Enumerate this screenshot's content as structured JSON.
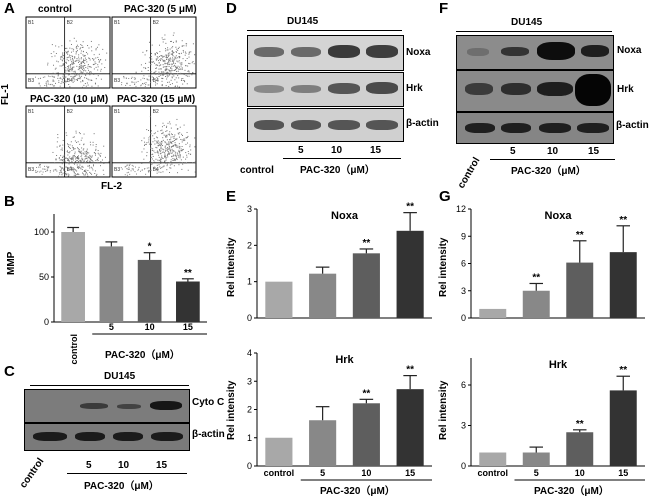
{
  "panels": {
    "A": {
      "letter": "A",
      "plots": [
        {
          "title": "control"
        },
        {
          "title": "PAC-320  (5 μM)"
        },
        {
          "title": "PAC-320  (10 μM)"
        },
        {
          "title": "PAC-320  (15 μM)"
        }
      ],
      "quadrants": [
        "B1",
        "B2",
        "B3",
        "B4"
      ],
      "ylabel": "FL-1",
      "xlabel": "FL-2"
    },
    "B": {
      "letter": "B",
      "ylabel": "MMP",
      "xtitle": "PAC-320（μM）"
    },
    "C": {
      "letter": "C",
      "cell": "DU145",
      "rows": [
        "Cyto C",
        "β-actin"
      ],
      "lanes": [
        "control",
        "5",
        "10",
        "15"
      ],
      "xtitle": "PAC-320（μM）"
    },
    "D": {
      "letter": "D",
      "cell": "DU145",
      "rows": [
        "Noxa",
        "Hrk",
        "β-actin"
      ],
      "lanes": [
        "control",
        "5",
        "10",
        "15"
      ],
      "xtitle": "PAC-320（μM）"
    },
    "E": {
      "letter": "E",
      "ylabel": "Rel intensity",
      "xtitle": "PAC-320（μM）"
    },
    "F": {
      "letter": "F",
      "cell": "DU145",
      "rows": [
        "Noxa",
        "Hrk",
        "β-actin"
      ],
      "lanes": [
        "control",
        "5",
        "10",
        "15"
      ],
      "xtitle": "PAC-320（μM）"
    },
    "G": {
      "letter": "G",
      "ylabel": "Rel intensity",
      "xtitle": "PAC-320（μM）"
    }
  },
  "colors": {
    "bars": [
      "#a8a8a8",
      "#888888",
      "#5e5e5e",
      "#333333"
    ]
  },
  "chart_data": [
    {
      "id": "B",
      "type": "bar",
      "title": "",
      "ylabel": "MMP",
      "categories": [
        "control",
        "5",
        "10",
        "15"
      ],
      "values": [
        100,
        84,
        69,
        45
      ],
      "errors": [
        5,
        5,
        8,
        3
      ],
      "sig": [
        "",
        "",
        "*",
        "**"
      ],
      "ylim": [
        0,
        120
      ],
      "yticks": [
        0,
        50,
        100
      ]
    },
    {
      "id": "E1",
      "type": "bar",
      "title": "Noxa",
      "ylabel": "Rel intensity",
      "categories": [
        "control",
        "5",
        "10",
        "15"
      ],
      "values": [
        1.0,
        1.22,
        1.78,
        2.4
      ],
      "errors": [
        0,
        0.18,
        0.12,
        0.5
      ],
      "sig": [
        "",
        "",
        "**",
        "**"
      ],
      "ylim": [
        0,
        3
      ],
      "yticks": [
        0,
        1,
        2,
        3
      ]
    },
    {
      "id": "E2",
      "type": "bar",
      "title": "Hrk",
      "ylabel": "Rel intensity",
      "categories": [
        "control",
        "5",
        "10",
        "15"
      ],
      "values": [
        1.0,
        1.62,
        2.22,
        2.72
      ],
      "errors": [
        0,
        0.48,
        0.14,
        0.48
      ],
      "sig": [
        "",
        "",
        "**",
        "**"
      ],
      "ylim": [
        0,
        4
      ],
      "yticks": [
        0,
        1,
        2,
        3,
        4
      ]
    },
    {
      "id": "G1",
      "type": "bar",
      "title": "Noxa",
      "ylabel": "Rel intensity",
      "categories": [
        "control",
        "5",
        "10",
        "15"
      ],
      "values": [
        1.0,
        3.0,
        6.1,
        7.25
      ],
      "errors": [
        0,
        0.8,
        2.4,
        2.9
      ],
      "sig": [
        "",
        "**",
        "**",
        "**"
      ],
      "ylim": [
        0,
        12
      ],
      "yticks": [
        0,
        3,
        6,
        9,
        12
      ]
    },
    {
      "id": "G2",
      "type": "bar",
      "title": "Hrk",
      "ylabel": "Rel intensity",
      "categories": [
        "control",
        "5",
        "10",
        "15"
      ],
      "values": [
        1.0,
        1.0,
        2.5,
        5.6
      ],
      "errors": [
        0,
        0.4,
        0.18,
        1.05
      ],
      "sig": [
        "",
        "",
        "**",
        "**"
      ],
      "ylim": [
        0,
        8
      ],
      "yticks": [
        0,
        3,
        6
      ],
      "xlabel_under": "PAC-320（μM）"
    }
  ]
}
